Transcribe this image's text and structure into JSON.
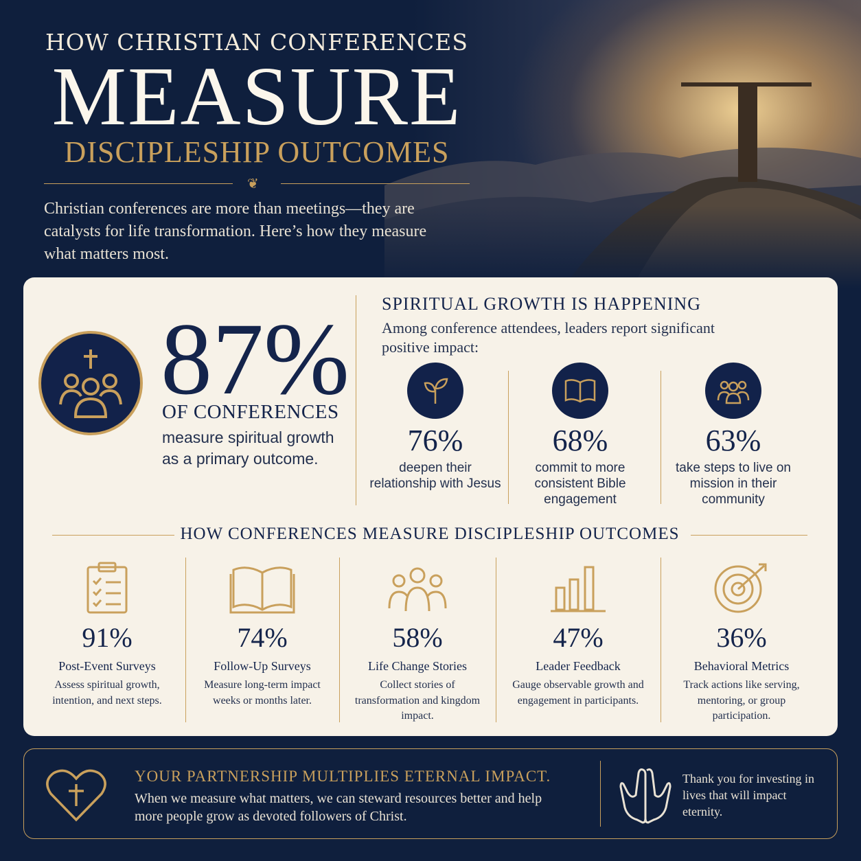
{
  "header": {
    "line1": "HOW CHRISTIAN CONFERENCES",
    "main": "MEASURE",
    "sub": "DISCIPLESHIP OUTCOMES",
    "intro": "Christian conferences are more than meetings—they are catalysts for life transformation. Here’s how they measure what matters most."
  },
  "headline_stat": {
    "value": "87%",
    "label": "OF CONFERENCES",
    "desc": "measure spiritual growth as a primary outcome.",
    "icon": "cross-people-icon"
  },
  "growth": {
    "title": "SPIRITUAL GROWTH IS HAPPENING",
    "subtitle": "Among conference attendees, leaders report significant positive impact:",
    "items": [
      {
        "value": "76%",
        "desc": "deepen their relationship with Jesus",
        "icon": "sprout-icon"
      },
      {
        "value": "68%",
        "desc": "commit to more consistent Bible engagement",
        "icon": "open-book-icon"
      },
      {
        "value": "63%",
        "desc": "take steps to live on mission in their community",
        "icon": "group-icon"
      }
    ]
  },
  "measures": {
    "title": "HOW CONFERENCES MEASURE DISCIPLESHIP OUTCOMES",
    "items": [
      {
        "value": "91%",
        "name": "Post-Event Surveys",
        "desc": "Assess spiritual growth, intention, and next steps.",
        "icon": "clipboard-checklist-icon"
      },
      {
        "value": "74%",
        "name": "Follow-Up Surveys",
        "desc": "Measure long-term impact weeks or months later.",
        "icon": "open-book-icon"
      },
      {
        "value": "58%",
        "name": "Life Change Stories",
        "desc": "Collect stories of transformation and kingdom impact.",
        "icon": "people-icon"
      },
      {
        "value": "47%",
        "name": "Leader Feedback",
        "desc": "Gauge observable growth and engagement in participants.",
        "icon": "bar-chart-icon"
      },
      {
        "value": "36%",
        "name": "Behavioral Metrics",
        "desc": "Track actions like serving, mentoring, or group participation.",
        "icon": "target-icon"
      }
    ]
  },
  "footer": {
    "title": "YOUR PARTNERSHIP MULTIPLIES ETERNAL IMPACT.",
    "text": "When we measure what matters, we can steward resources better and help more people grow as devoted followers of Christ.",
    "thanks": "Thank you for investing in lives that will impact eternity."
  },
  "colors": {
    "navy": "#0f1f3d",
    "gold": "#c9a05c",
    "cream": "#f7f2e8"
  }
}
